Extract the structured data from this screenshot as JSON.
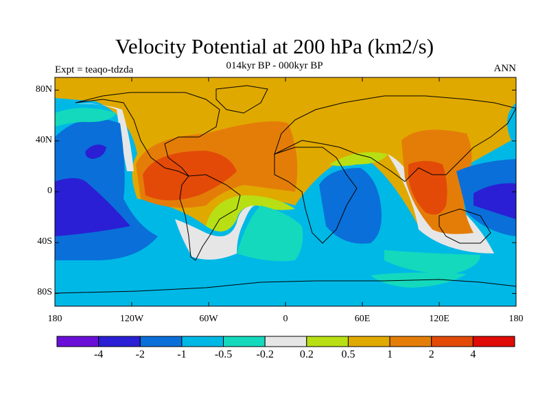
{
  "title": "Velocity Potential at 200 hPa (km2/s)",
  "subtitle": "014kyr BP - 000kyr BP",
  "experiment": "Expt = teaqo-tdzda",
  "season": "ANN",
  "lat_labels": [
    "80N",
    "40N",
    "0",
    "40S",
    "80S"
  ],
  "lat_values": [
    80,
    40,
    0,
    -40,
    -80
  ],
  "lon_labels": [
    "180",
    "120W",
    "60W",
    "0",
    "60E",
    "120E",
    "180"
  ],
  "lon_values": [
    -180,
    -120,
    -60,
    0,
    60,
    120,
    180
  ],
  "colorbar": {
    "labels": [
      "-4",
      "-2",
      "-1",
      "-0.5",
      "-0.2",
      "0.2",
      "0.5",
      "1",
      "2",
      "4"
    ],
    "colors": [
      "#6a0fd8",
      "#2a1fd4",
      "#0a6fd8",
      "#00b8e6",
      "#14d9bd",
      "#e6e6e6",
      "#b8df14",
      "#e0a900",
      "#e47d08",
      "#e34a08",
      "#e00a06"
    ]
  }
}
